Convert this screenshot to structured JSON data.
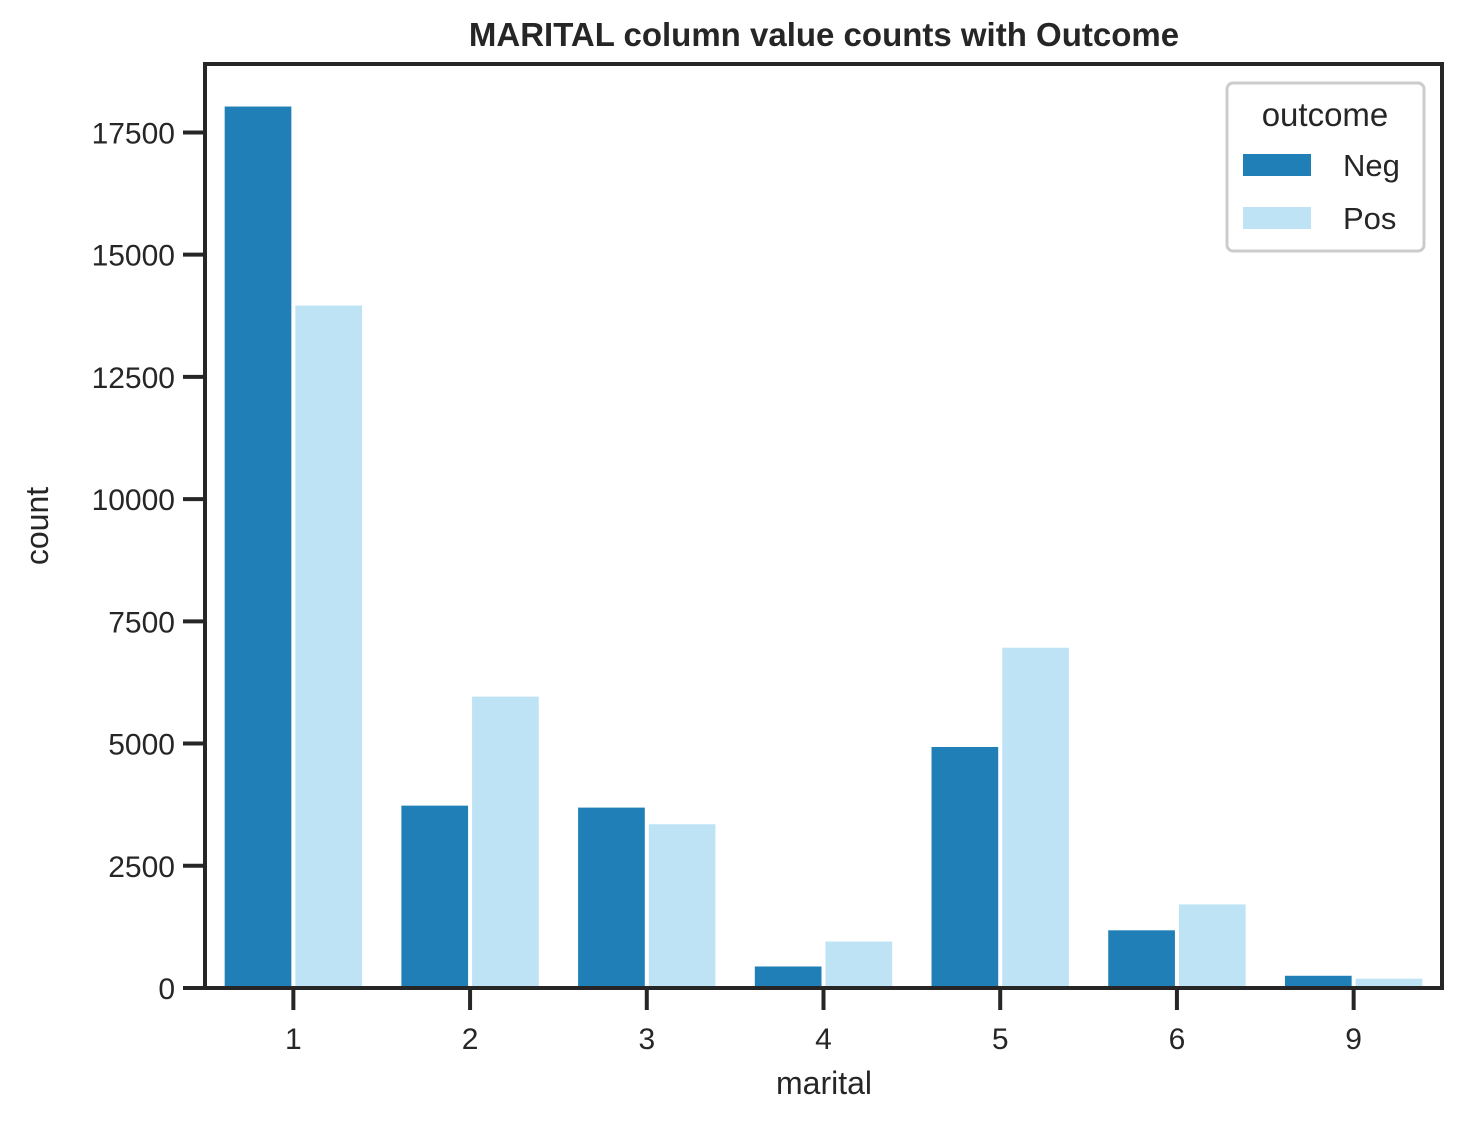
{
  "chart_data": {
    "type": "bar",
    "title": "MARITAL column value counts with Outcome",
    "xlabel": "marital",
    "ylabel": "count",
    "categories": [
      "1",
      "2",
      "3",
      "4",
      "5",
      "6",
      "9"
    ],
    "series": [
      {
        "name": "Neg",
        "color": "#1f7fb6",
        "values": [
          18030,
          3730,
          3690,
          440,
          4930,
          1180,
          250
        ]
      },
      {
        "name": "Pos",
        "color": "#bde3f4",
        "values": [
          13960,
          5960,
          3350,
          950,
          6960,
          1710,
          190
        ]
      }
    ],
    "ylim": [
      0,
      18900
    ],
    "yticks": [
      0,
      2500,
      5000,
      7500,
      10000,
      12500,
      15000,
      17500
    ],
    "grid": false,
    "legend": {
      "title": "outcome",
      "placement": "top-right"
    }
  }
}
